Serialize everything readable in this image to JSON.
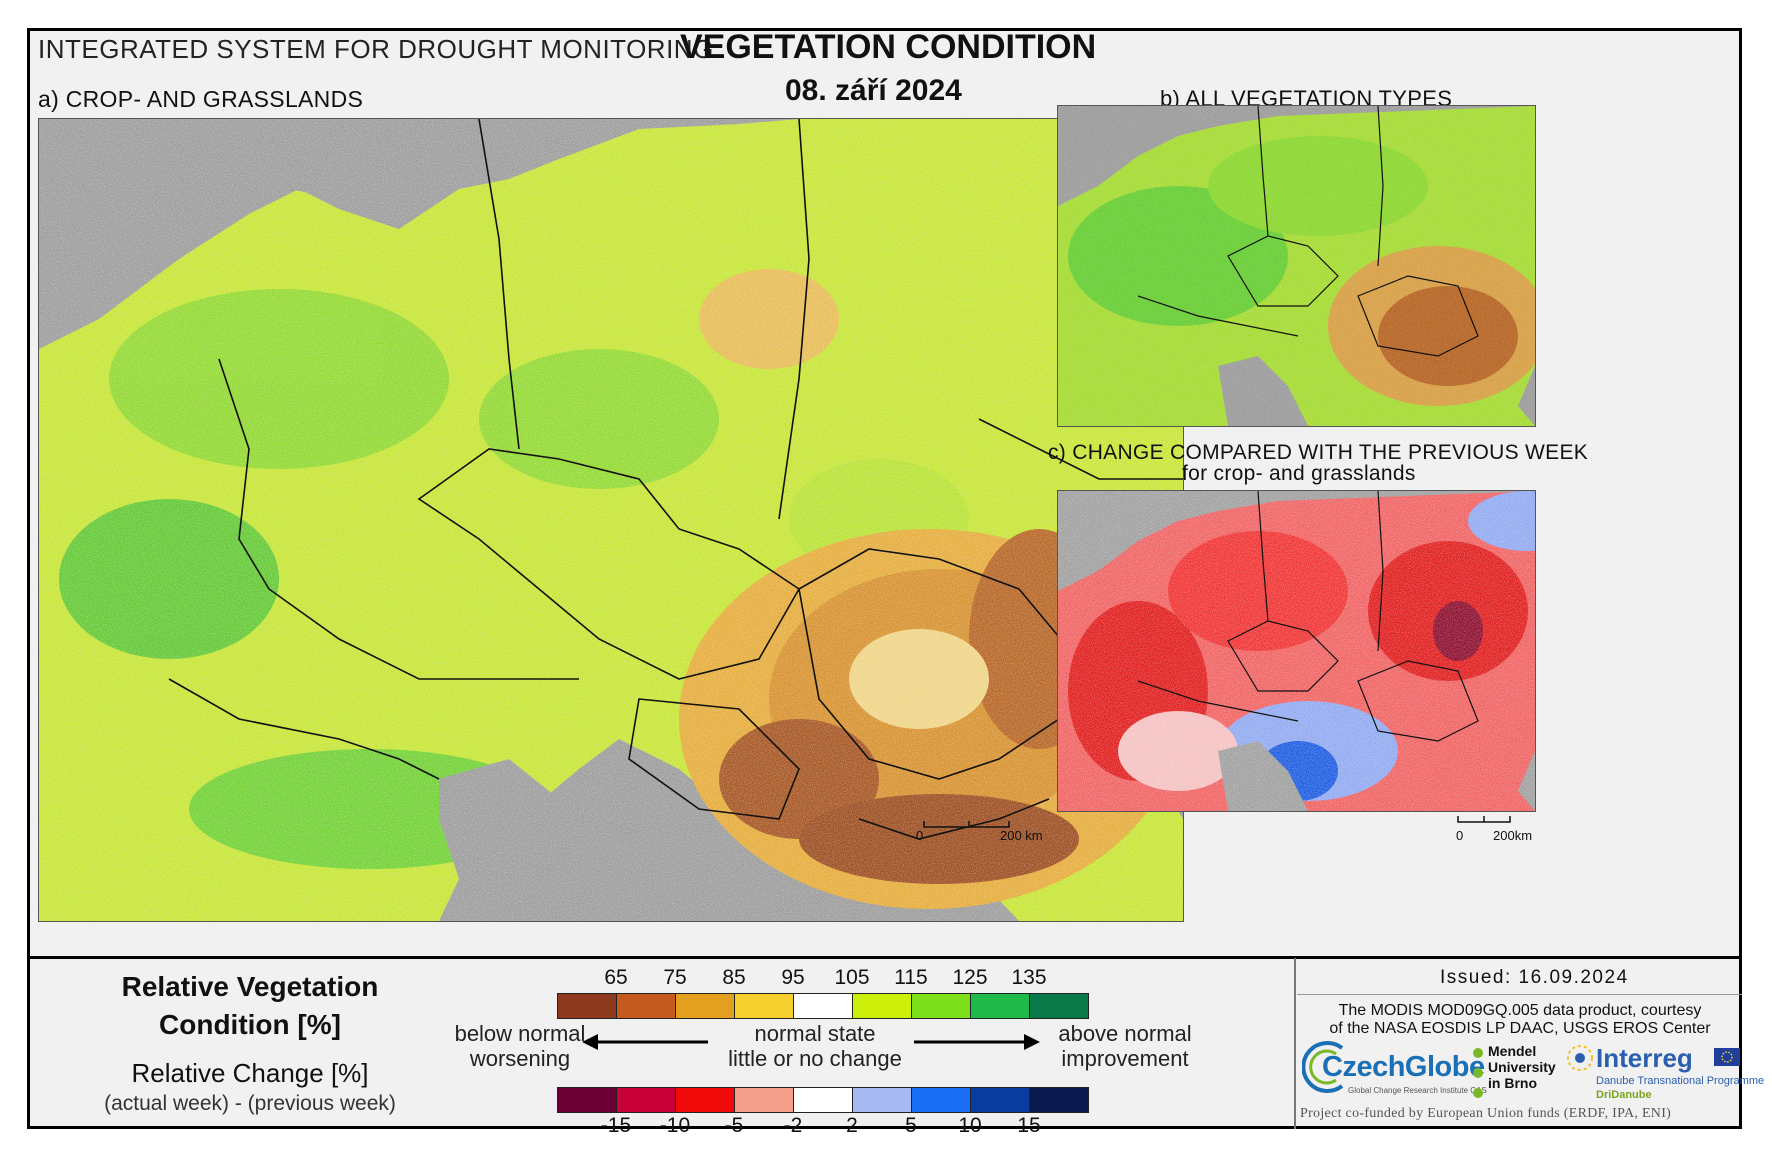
{
  "header": {
    "system_name": "INTEGRATED SYSTEM FOR DROUGHT MONITORING",
    "title": "VEGETATION CONDITION",
    "date": "08. září 2024"
  },
  "panels": {
    "a": {
      "label": "a) CROP- AND GRASSLANDS",
      "scale_zero": "0",
      "scale_end": "200 km"
    },
    "b": {
      "label": "b) ALL VEGETATION TYPES"
    },
    "c": {
      "label": "c) CHANGE COMPARED WITH THE PREVIOUS WEEK",
      "sublabel": "for crop- and grasslands",
      "scale_zero": "0",
      "scale_end": "200km"
    }
  },
  "legend": {
    "rvc_title_line1": "Relative Vegetation",
    "rvc_title_line2": "Condition [%]",
    "rc_title": "Relative Change [%]",
    "rc_subtitle": "(actual week) - (previous week)",
    "rvc_ticks": [
      "65",
      "75",
      "85",
      "95",
      "105",
      "115",
      "125",
      "135"
    ],
    "rvc_colors": [
      "#8e3a1e",
      "#c45a1e",
      "#e3a01e",
      "#f5d02e",
      "#ffffff",
      "#cdf00a",
      "#7de01a",
      "#1fba4a",
      "#0a7a4a"
    ],
    "rc_ticks": [
      "-15",
      "-10",
      "-5",
      "-2",
      "2",
      "5",
      "10",
      "15"
    ],
    "rc_colors": [
      "#6a0033",
      "#c8003a",
      "#f00a0a",
      "#f5a08c",
      "#ffffff",
      "#a8b8f0",
      "#1a6ef5",
      "#0a3ca0",
      "#0a1a50"
    ],
    "left_note_1": "below normal",
    "left_note_2": "worsening",
    "mid_note_1": "normal state",
    "mid_note_2": "little or no change",
    "right_note_1": "above normal",
    "right_note_2": "improvement"
  },
  "footer": {
    "issued": "Issued: 16.09.2024",
    "credit_line1": "The MODIS MOD09GQ.005 data product, courtesy",
    "credit_line2": "of the NASA EOSDIS LP DAAC, USGS EROS Center",
    "logo_czechglobe": "CzechGlobe",
    "logo_czechglobe_sub": "Global Change Research Institute CAS",
    "logo_mendel_1": "Mendel",
    "logo_mendel_2": "University",
    "logo_mendel_3": "in Brno",
    "logo_interreg": "Interreg",
    "logo_interreg_sub": "Danube Transnational Programme",
    "logo_interreg_sub2": "DriDanube",
    "cofund": "Project co-funded by European Union funds (ERDF, IPA, ENI)"
  }
}
